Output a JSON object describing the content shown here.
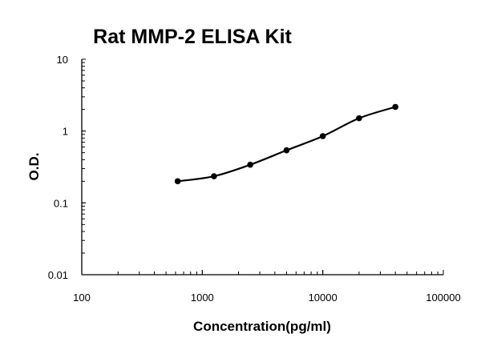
{
  "chart_data": {
    "type": "line",
    "title": "Rat MMP-2 ELISA Kit",
    "xlabel": "Concentration(pg/ml)",
    "ylabel": "O.D.",
    "x_scale": "log",
    "y_scale": "log",
    "xlim": [
      100,
      100000
    ],
    "ylim": [
      0.01,
      10
    ],
    "x_ticks": [
      "100",
      "1000",
      "10000",
      "100000"
    ],
    "y_ticks": [
      "0.01",
      "0.1",
      "1",
      "10"
    ],
    "grid": false,
    "series": [
      {
        "x": [
          625,
          1250,
          2500,
          5000,
          10000,
          20000,
          40000
        ],
        "y": [
          0.2,
          0.235,
          0.34,
          0.54,
          0.85,
          1.51,
          2.17
        ],
        "color": "#000000",
        "marker": "circle",
        "smooth": true
      }
    ]
  }
}
